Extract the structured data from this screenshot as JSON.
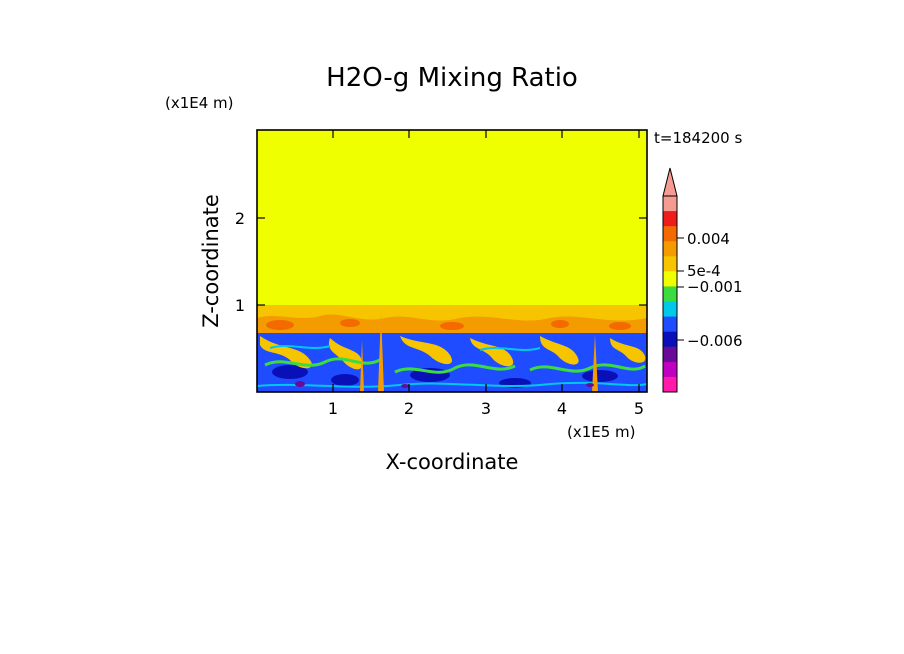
{
  "chart_data": {
    "type": "heatmap",
    "title": "H2O-g Mixing Ratio",
    "xlabel": "X-coordinate",
    "ylabel": "Z-coordinate",
    "x_scale_label": "(x1E5 m)",
    "y_scale_label": "(x1E4 m)",
    "time_label": "t=184200 s",
    "xlim": [
      0,
      5.1
    ],
    "ylim": [
      0,
      3.0
    ],
    "x_ticks": [
      "1",
      "2",
      "3",
      "4",
      "5"
    ],
    "y_ticks": [
      "1",
      "2"
    ],
    "colorbar": {
      "labels": [
        "0.004",
        "5e-4",
        "−0.001",
        "−0.006"
      ],
      "colors_top_to_bottom": [
        "#f59b91",
        "#ef1c1c",
        "#f26a00",
        "#f49b00",
        "#f7c400",
        "#f0ff00",
        "#3cdc40",
        "#00c8e8",
        "#1f4cff",
        "#0a10b8",
        "#6a0a99",
        "#c000c0",
        "#ff1aaa"
      ],
      "extend": "max"
    },
    "regions": [
      {
        "name": "upper-moist-layer",
        "z_range": [
          1.0,
          3.0
        ],
        "color": "#f0ff00"
      },
      {
        "name": "transition-layer",
        "z_range": [
          0.7,
          1.0
        ],
        "color": "#f7c400"
      },
      {
        "name": "lower-turbulent-layer",
        "z_range": [
          0.0,
          0.7
        ],
        "color": "#1f4cff"
      }
    ]
  }
}
